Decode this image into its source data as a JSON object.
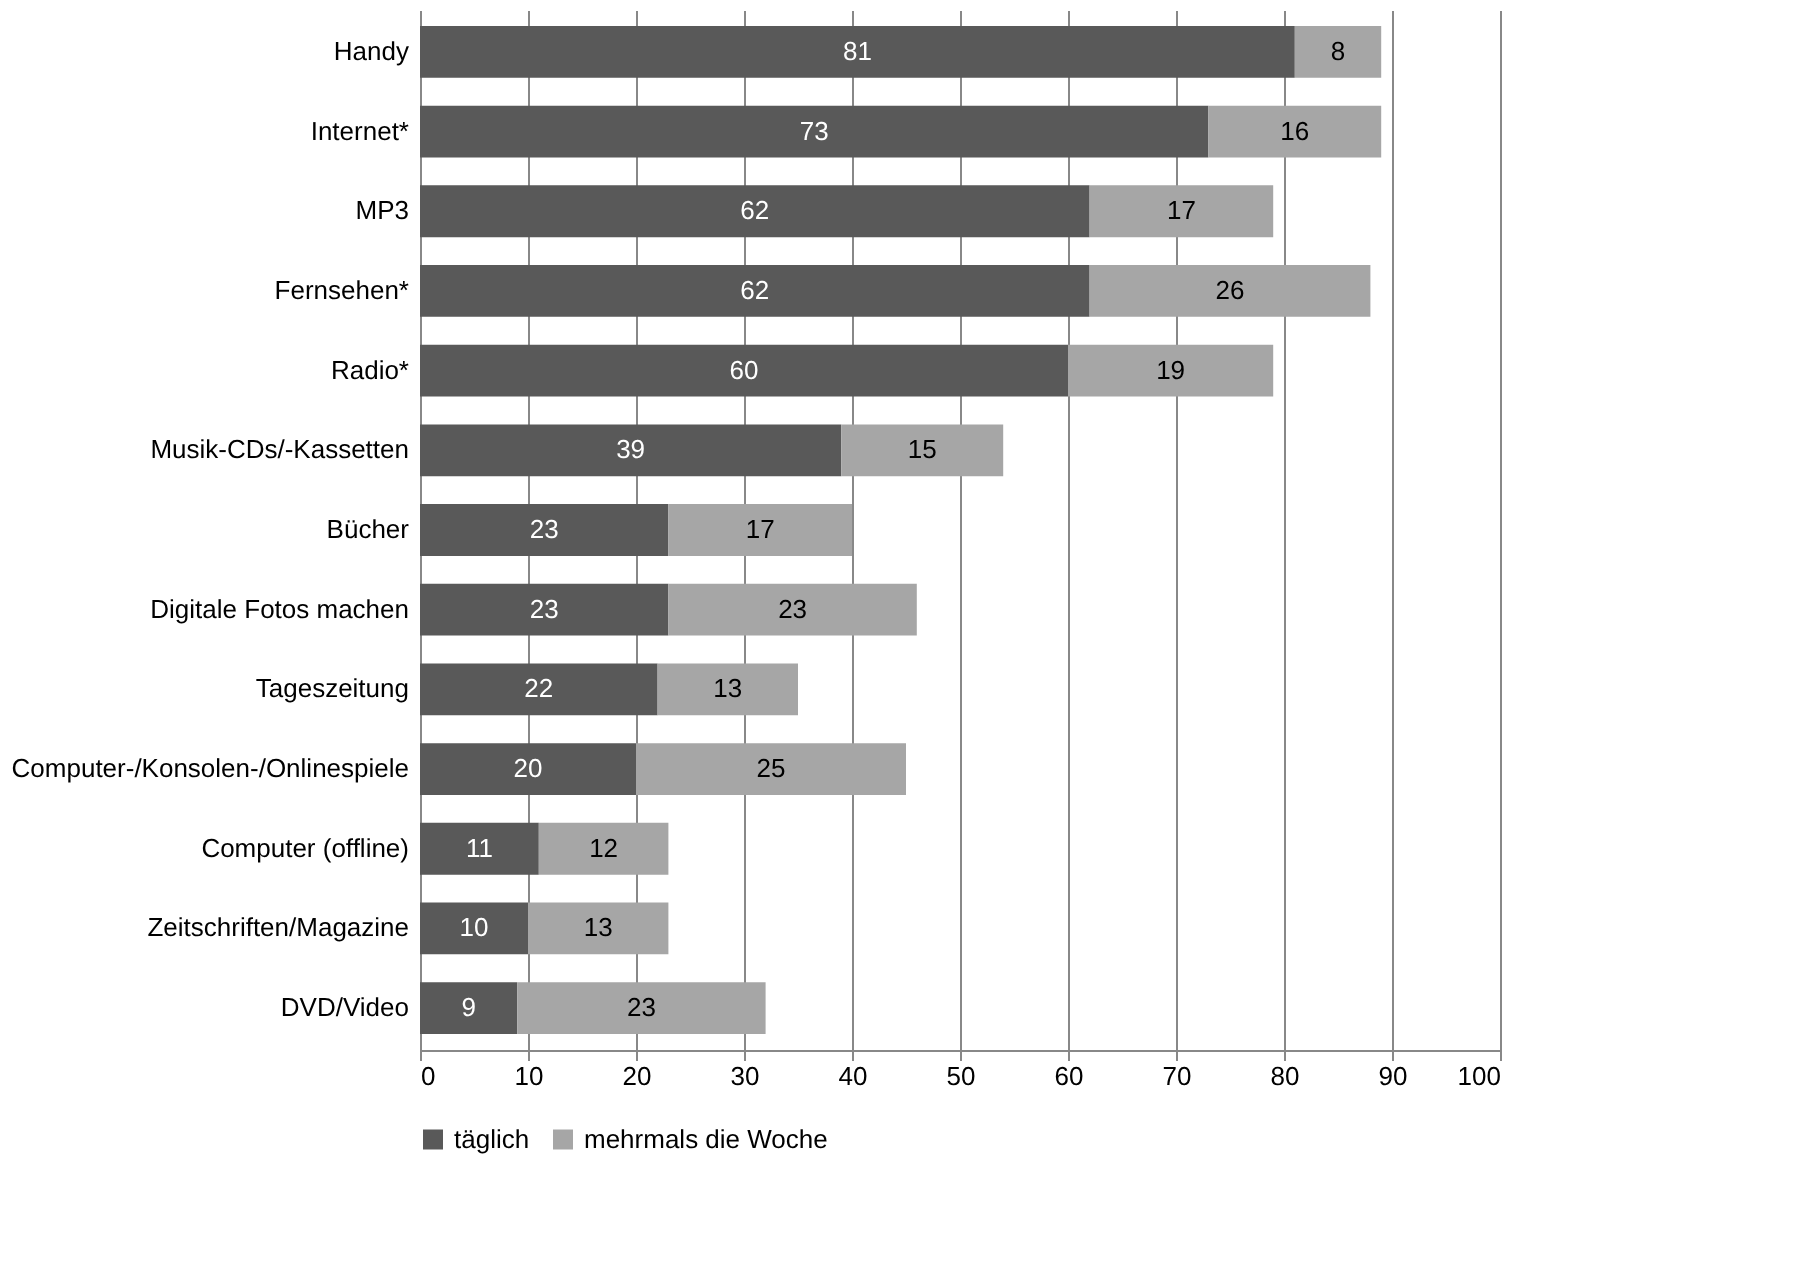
{
  "chart_data": {
    "type": "bar",
    "orientation": "horizontal",
    "stacked": true,
    "data_labels": true,
    "categories": [
      "Handy",
      "Internet*",
      "MP3",
      "Fernsehen*",
      "Radio*",
      "Musik-CDs/-Kassetten",
      "Bücher",
      "Digitale Fotos machen",
      "Tageszeitung",
      "Computer-/Konsolen-/Onlinespiele",
      "Computer (offline)",
      "Zeitschriften/Magazine",
      "DVD/Video"
    ],
    "series": [
      {
        "name": "täglich",
        "color": "#595959",
        "values": [
          81,
          73,
          62,
          62,
          60,
          39,
          23,
          23,
          22,
          20,
          11,
          10,
          9
        ]
      },
      {
        "name": "mehrmals die Woche",
        "color": "#a6a6a6",
        "values": [
          8,
          16,
          17,
          26,
          19,
          15,
          17,
          23,
          13,
          25,
          12,
          13,
          23
        ]
      }
    ],
    "xlim": [
      0,
      100
    ],
    "xticks": [
      0,
      10,
      20,
      30,
      40,
      50,
      60,
      70,
      80,
      90,
      100
    ],
    "grid": "x",
    "legend": "bottom"
  }
}
